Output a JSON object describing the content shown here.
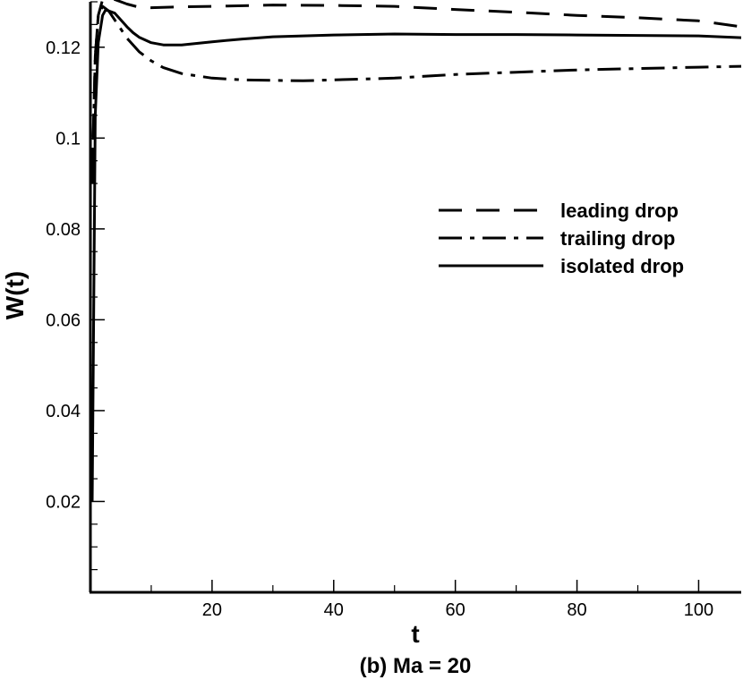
{
  "chart_data": {
    "type": "line",
    "title": "(b) Ma = 20",
    "xlabel": "t",
    "ylabel": "W(t)",
    "xlim": [
      0,
      107
    ],
    "ylim": [
      0,
      0.13
    ],
    "xticks": [
      20,
      40,
      60,
      80,
      100
    ],
    "yticks": [
      0.02,
      0.04,
      0.06,
      0.08,
      0.1,
      0.12
    ],
    "ytick_labels": [
      "0.02",
      "0.04",
      "0.06",
      "0.08",
      "0.1",
      "0.12"
    ],
    "grid": false,
    "legend_position": "center-right",
    "series": [
      {
        "name": "leading drop",
        "style": "dashed",
        "color": "#000000",
        "x": [
          0.3,
          0.8,
          1.3,
          2,
          3,
          4,
          6,
          8,
          10,
          15,
          20,
          30,
          40,
          50,
          60,
          70,
          80,
          90,
          100,
          107
        ],
        "y": [
          0.092,
          0.118,
          0.127,
          0.1305,
          0.131,
          0.1305,
          0.1295,
          0.1288,
          0.1287,
          0.1289,
          0.129,
          0.1293,
          0.1292,
          0.129,
          0.1283,
          0.1277,
          0.127,
          0.1265,
          0.1258,
          0.1245
        ]
      },
      {
        "name": "trailing drop",
        "style": "dashdot",
        "color": "#000000",
        "x": [
          0.3,
          0.8,
          1.3,
          2,
          3,
          4,
          6,
          8,
          10,
          12,
          15,
          20,
          25,
          30,
          35,
          40,
          50,
          60,
          70,
          80,
          90,
          100,
          107
        ],
        "y": [
          0.09,
          0.118,
          0.127,
          0.129,
          0.128,
          0.126,
          0.122,
          0.119,
          0.117,
          0.1155,
          0.1142,
          0.1132,
          0.1128,
          0.1127,
          0.1126,
          0.1128,
          0.1132,
          0.114,
          0.1145,
          0.115,
          0.1153,
          0.1156,
          0.1158
        ]
      },
      {
        "name": "isolated drop",
        "style": "solid",
        "color": "#000000",
        "x": [
          0.3,
          0.8,
          1.3,
          2,
          2.5,
          3,
          4,
          5,
          6,
          7,
          8,
          10,
          12,
          15,
          20,
          25,
          30,
          40,
          50,
          60,
          70,
          80,
          90,
          100,
          107
        ],
        "y": [
          0.02,
          0.105,
          0.121,
          0.127,
          0.1282,
          0.128,
          0.1275,
          0.126,
          0.1245,
          0.1232,
          0.1222,
          0.121,
          0.1205,
          0.1205,
          0.1212,
          0.1218,
          0.1223,
          0.1227,
          0.1229,
          0.1228,
          0.1228,
          0.1227,
          0.1226,
          0.1225,
          0.1221
        ]
      }
    ]
  }
}
